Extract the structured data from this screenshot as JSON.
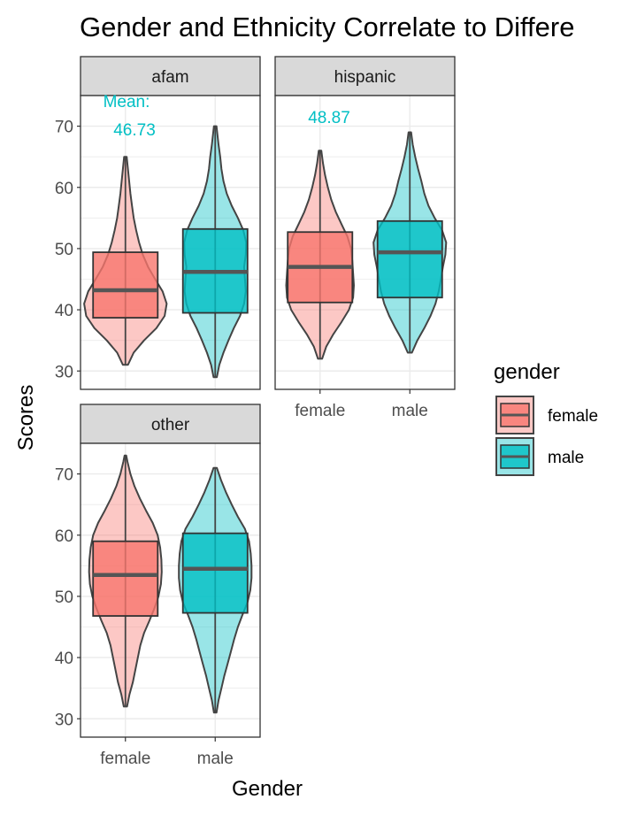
{
  "chart_data": {
    "type": "violin",
    "title": "Gender and Ethnicity Correlate to Differe",
    "xlabel": "Gender",
    "ylabel": "Scores",
    "categories": [
      "female",
      "male"
    ],
    "ylim": [
      27,
      75
    ],
    "yticks": [
      30,
      40,
      50,
      60,
      70
    ],
    "grid": true,
    "legend": {
      "title": "gender",
      "position": "right",
      "entries": [
        {
          "label": "female",
          "color": "#F8766D"
        },
        {
          "label": "male",
          "color": "#00BFC4"
        }
      ]
    },
    "panels": [
      {
        "name": "afam",
        "annotation": [
          "Mean:",
          "46.73"
        ],
        "series": [
          {
            "name": "female",
            "min": 31,
            "q1": 38.7,
            "median": 43.2,
            "q3": 49.4,
            "max": 65,
            "density": [
              [
                31,
                0.06
              ],
              [
                33,
                0.2
              ],
              [
                35,
                0.45
              ],
              [
                37,
                0.75
              ],
              [
                39,
                0.95
              ],
              [
                41,
                1.0
              ],
              [
                43,
                0.9
              ],
              [
                45,
                0.72
              ],
              [
                47,
                0.55
              ],
              [
                49,
                0.42
              ],
              [
                51,
                0.33
              ],
              [
                53,
                0.26
              ],
              [
                55,
                0.2
              ],
              [
                57,
                0.16
              ],
              [
                59,
                0.12
              ],
              [
                61,
                0.09
              ],
              [
                63,
                0.06
              ],
              [
                65,
                0.03
              ]
            ]
          },
          {
            "name": "male",
            "min": 29,
            "q1": 39.5,
            "median": 46.2,
            "q3": 53.2,
            "max": 70,
            "density": [
              [
                29,
                0.04
              ],
              [
                31,
                0.1
              ],
              [
                33,
                0.2
              ],
              [
                35,
                0.32
              ],
              [
                37,
                0.45
              ],
              [
                39,
                0.6
              ],
              [
                41,
                0.7
              ],
              [
                43,
                0.74
              ],
              [
                45,
                0.72
              ],
              [
                47,
                0.7
              ],
              [
                49,
                0.74
              ],
              [
                51,
                0.75
              ],
              [
                53,
                0.68
              ],
              [
                55,
                0.55
              ],
              [
                57,
                0.4
              ],
              [
                59,
                0.28
              ],
              [
                61,
                0.2
              ],
              [
                63,
                0.15
              ],
              [
                65,
                0.12
              ],
              [
                67,
                0.08
              ],
              [
                70,
                0.03
              ]
            ]
          }
        ]
      },
      {
        "name": "hispanic",
        "annotation": [
          "48.87"
        ],
        "series": [
          {
            "name": "female",
            "min": 32,
            "q1": 41.2,
            "median": 47.0,
            "q3": 52.7,
            "max": 66,
            "density": [
              [
                32,
                0.05
              ],
              [
                34,
                0.15
              ],
              [
                36,
                0.32
              ],
              [
                38,
                0.52
              ],
              [
                40,
                0.7
              ],
              [
                42,
                0.8
              ],
              [
                44,
                0.82
              ],
              [
                46,
                0.8
              ],
              [
                48,
                0.78
              ],
              [
                50,
                0.75
              ],
              [
                52,
                0.66
              ],
              [
                54,
                0.52
              ],
              [
                56,
                0.38
              ],
              [
                58,
                0.27
              ],
              [
                60,
                0.19
              ],
              [
                62,
                0.12
              ],
              [
                64,
                0.07
              ],
              [
                66,
                0.03
              ]
            ]
          },
          {
            "name": "male",
            "min": 33,
            "q1": 42.0,
            "median": 49.4,
            "q3": 54.5,
            "max": 69,
            "density": [
              [
                33,
                0.05
              ],
              [
                35,
                0.18
              ],
              [
                37,
                0.35
              ],
              [
                39,
                0.5
              ],
              [
                41,
                0.62
              ],
              [
                43,
                0.7
              ],
              [
                45,
                0.75
              ],
              [
                47,
                0.8
              ],
              [
                49,
                0.86
              ],
              [
                51,
                0.88
              ],
              [
                53,
                0.78
              ],
              [
                55,
                0.6
              ],
              [
                57,
                0.45
              ],
              [
                59,
                0.35
              ],
              [
                61,
                0.28
              ],
              [
                63,
                0.2
              ],
              [
                65,
                0.13
              ],
              [
                67,
                0.07
              ],
              [
                69,
                0.03
              ]
            ]
          }
        ]
      },
      {
        "name": "other",
        "annotation": [],
        "series": [
          {
            "name": "female",
            "min": 32,
            "q1": 46.8,
            "median": 53.5,
            "q3": 59.0,
            "max": 73,
            "density": [
              [
                32,
                0.04
              ],
              [
                34,
                0.1
              ],
              [
                36,
                0.18
              ],
              [
                38,
                0.24
              ],
              [
                40,
                0.3
              ],
              [
                42,
                0.36
              ],
              [
                44,
                0.45
              ],
              [
                46,
                0.58
              ],
              [
                48,
                0.7
              ],
              [
                50,
                0.8
              ],
              [
                52,
                0.86
              ],
              [
                54,
                0.88
              ],
              [
                56,
                0.87
              ],
              [
                58,
                0.84
              ],
              [
                60,
                0.78
              ],
              [
                62,
                0.66
              ],
              [
                64,
                0.5
              ],
              [
                66,
                0.35
              ],
              [
                68,
                0.22
              ],
              [
                70,
                0.12
              ],
              [
                72,
                0.05
              ],
              [
                73,
                0.02
              ]
            ]
          },
          {
            "name": "male",
            "min": 31,
            "q1": 47.3,
            "median": 54.5,
            "q3": 60.3,
            "max": 71,
            "density": [
              [
                31,
                0.03
              ],
              [
                33,
                0.08
              ],
              [
                35,
                0.15
              ],
              [
                37,
                0.22
              ],
              [
                39,
                0.3
              ],
              [
                41,
                0.38
              ],
              [
                43,
                0.46
              ],
              [
                45,
                0.55
              ],
              [
                47,
                0.66
              ],
              [
                49,
                0.78
              ],
              [
                51,
                0.85
              ],
              [
                53,
                0.88
              ],
              [
                55,
                0.88
              ],
              [
                57,
                0.86
              ],
              [
                59,
                0.82
              ],
              [
                61,
                0.72
              ],
              [
                63,
                0.55
              ],
              [
                65,
                0.4
              ],
              [
                67,
                0.26
              ],
              [
                69,
                0.14
              ],
              [
                71,
                0.04
              ]
            ]
          }
        ]
      }
    ]
  }
}
